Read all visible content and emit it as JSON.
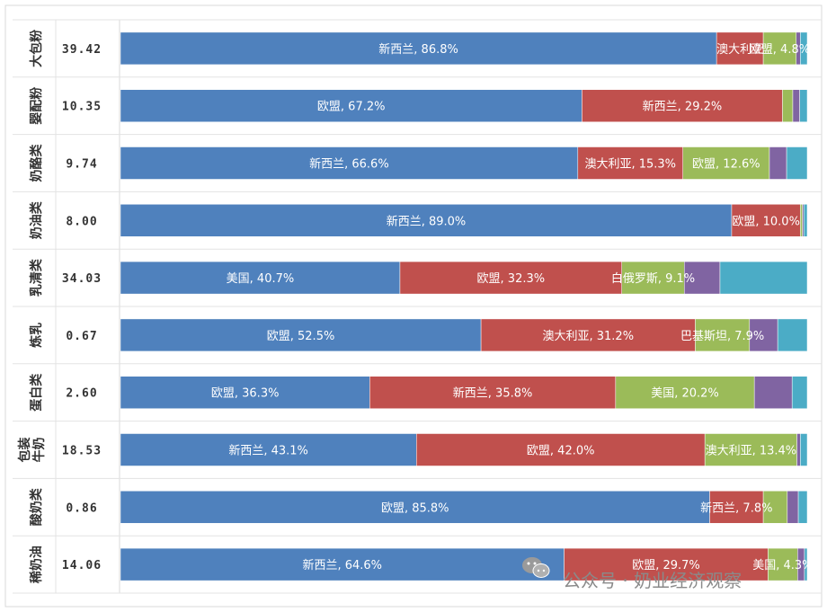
{
  "chart_data": {
    "type": "bar",
    "orientation": "horizontal",
    "stacked": "100%",
    "colors": [
      "#4f81bd",
      "#c0504d",
      "#9bbb59",
      "#8064a2",
      "#4bacc6"
    ],
    "rows": [
      {
        "category": "大包粉",
        "value": "39.42",
        "segments": [
          {
            "name": "新西兰",
            "pct": 86.8,
            "label": "新西兰, 86.8%"
          },
          {
            "name": "澳大利亚",
            "pct": 6.8,
            "label": "澳大利亚"
          },
          {
            "name": "欧盟",
            "pct": 4.8,
            "label": "欧盟, 4.8%"
          },
          {
            "name": "",
            "pct": 0.6,
            "label": ""
          },
          {
            "name": "",
            "pct": 1.0,
            "label": ""
          }
        ]
      },
      {
        "category": "婴配粉",
        "value": "10.35",
        "segments": [
          {
            "name": "欧盟",
            "pct": 67.2,
            "label": "欧盟, 67.2%"
          },
          {
            "name": "新西兰",
            "pct": 29.2,
            "label": "新西兰, 29.2%"
          },
          {
            "name": "",
            "pct": 1.5,
            "label": ""
          },
          {
            "name": "",
            "pct": 1.0,
            "label": ""
          },
          {
            "name": "",
            "pct": 1.1,
            "label": ""
          }
        ]
      },
      {
        "category": "奶酪类",
        "value": "9.74",
        "segments": [
          {
            "name": "新西兰",
            "pct": 66.6,
            "label": "新西兰, 66.6%"
          },
          {
            "name": "澳大利亚",
            "pct": 15.3,
            "label": "澳大利亚, 15.3%"
          },
          {
            "name": "欧盟",
            "pct": 12.6,
            "label": "欧盟, 12.6%"
          },
          {
            "name": "",
            "pct": 2.5,
            "label": ""
          },
          {
            "name": "",
            "pct": 3.0,
            "label": ""
          }
        ]
      },
      {
        "category": "奶油类",
        "value": "8.00",
        "segments": [
          {
            "name": "新西兰",
            "pct": 89.0,
            "label": "新西兰, 89.0%"
          },
          {
            "name": "欧盟",
            "pct": 10.0,
            "label": "欧盟, 10.0%"
          },
          {
            "name": "",
            "pct": 0.3,
            "label": ""
          },
          {
            "name": "",
            "pct": 0.2,
            "label": ""
          },
          {
            "name": "",
            "pct": 0.5,
            "label": ""
          }
        ]
      },
      {
        "category": "乳清类",
        "value": "34.03",
        "segments": [
          {
            "name": "美国",
            "pct": 40.7,
            "label": "美国, 40.7%"
          },
          {
            "name": "欧盟",
            "pct": 32.3,
            "label": "欧盟, 32.3%"
          },
          {
            "name": "白俄罗斯",
            "pct": 9.1,
            "label": "白俄罗斯, 9.1%"
          },
          {
            "name": "",
            "pct": 5.2,
            "label": ""
          },
          {
            "name": "",
            "pct": 12.7,
            "label": ""
          }
        ]
      },
      {
        "category": "炼乳",
        "value": "0.67",
        "segments": [
          {
            "name": "欧盟",
            "pct": 52.5,
            "label": "欧盟, 52.5%"
          },
          {
            "name": "澳大利亚",
            "pct": 31.2,
            "label": "澳大利亚, 31.2%"
          },
          {
            "name": "巴基斯坦",
            "pct": 7.9,
            "label": "巴基斯坦, 7.9%"
          },
          {
            "name": "",
            "pct": 4.1,
            "label": ""
          },
          {
            "name": "",
            "pct": 4.3,
            "label": ""
          }
        ]
      },
      {
        "category": "蛋白类",
        "value": "2.60",
        "segments": [
          {
            "name": "欧盟",
            "pct": 36.3,
            "label": "欧盟, 36.3%"
          },
          {
            "name": "新西兰",
            "pct": 35.8,
            "label": "新西兰, 35.8%"
          },
          {
            "name": "美国",
            "pct": 20.2,
            "label": "美国, 20.2%"
          },
          {
            "name": "",
            "pct": 5.5,
            "label": ""
          },
          {
            "name": "",
            "pct": 2.2,
            "label": ""
          }
        ]
      },
      {
        "category": "包装牛奶",
        "value": "18.53",
        "segments": [
          {
            "name": "新西兰",
            "pct": 43.1,
            "label": "新西兰, 43.1%"
          },
          {
            "name": "欧盟",
            "pct": 42.0,
            "label": "欧盟, 42.0%"
          },
          {
            "name": "澳大利亚",
            "pct": 13.4,
            "label": "澳大利亚, 13.4%"
          },
          {
            "name": "",
            "pct": 0.5,
            "label": ""
          },
          {
            "name": "",
            "pct": 1.0,
            "label": ""
          }
        ]
      },
      {
        "category": "酸奶类",
        "value": "0.86",
        "segments": [
          {
            "name": "欧盟",
            "pct": 85.8,
            "label": "欧盟, 85.8%"
          },
          {
            "name": "新西兰",
            "pct": 7.8,
            "label": "新西兰, 7.8%"
          },
          {
            "name": "",
            "pct": 3.5,
            "label": ""
          },
          {
            "name": "",
            "pct": 1.6,
            "label": ""
          },
          {
            "name": "",
            "pct": 1.3,
            "label": ""
          }
        ]
      },
      {
        "category": "稀奶油",
        "value": "14.06",
        "segments": [
          {
            "name": "新西兰",
            "pct": 64.6,
            "label": "新西兰, 64.6%"
          },
          {
            "name": "欧盟",
            "pct": 29.7,
            "label": "欧盟, 29.7%"
          },
          {
            "name": "美国",
            "pct": 4.3,
            "label": "美国, 4.3%"
          },
          {
            "name": "",
            "pct": 1.0,
            "label": ""
          },
          {
            "name": "",
            "pct": 0.4,
            "label": ""
          }
        ]
      }
    ]
  },
  "watermark": {
    "icon": "wechat-icon",
    "text": "公众号 · 奶业经济观察"
  }
}
